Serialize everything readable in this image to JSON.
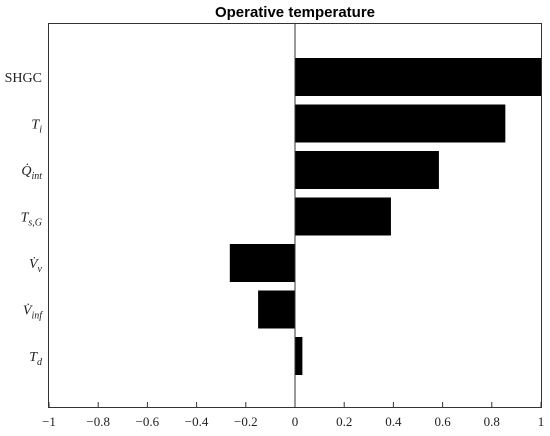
{
  "chart_data": {
    "type": "bar",
    "orientation": "horizontal",
    "title": "Operative temperature",
    "categories": [
      {
        "main": "SHGC",
        "sub": "",
        "dot": false,
        "italic": false
      },
      {
        "main": "T",
        "sub": "i",
        "dot": false,
        "italic": true
      },
      {
        "main": "Q",
        "sub": "int",
        "dot": true,
        "italic": true
      },
      {
        "main": "T",
        "sub": "s,G",
        "dot": false,
        "italic": true
      },
      {
        "main": "V",
        "sub": "v",
        "dot": true,
        "italic": true
      },
      {
        "main": "V",
        "sub": "inf",
        "dot": true,
        "italic": true
      },
      {
        "main": "T",
        "sub": "d",
        "dot": false,
        "italic": true
      }
    ],
    "values": [
      1.0,
      0.855,
      0.585,
      0.39,
      -0.265,
      -0.15,
      0.03
    ],
    "xlim": [
      -1,
      1
    ],
    "xticks": [
      -1,
      -0.8,
      -0.6,
      -0.4,
      -0.2,
      0,
      0.2,
      0.4,
      0.6,
      0.8,
      1
    ],
    "xtick_labels": [
      "−1",
      "−0.8",
      "−0.6",
      "−0.4",
      "−0.2",
      "0",
      "0.2",
      "0.4",
      "0.6",
      "0.8",
      "1"
    ],
    "bar_color": "#000000",
    "zero_line": true,
    "grid": false,
    "xlabel": "",
    "ylabel": ""
  }
}
